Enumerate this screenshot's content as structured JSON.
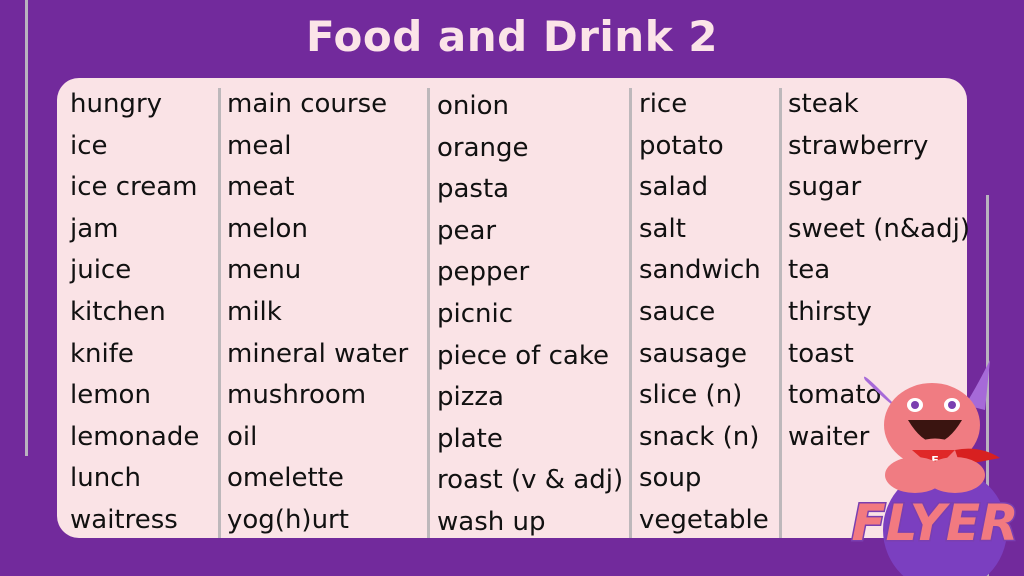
{
  "title": "Food and Drink 2",
  "columns": [
    [
      "hungry",
      "ice",
      "ice cream",
      "jam",
      "juice",
      "kitchen",
      "knife",
      "lemon",
      "lemonade",
      "lunch",
      "waitress"
    ],
    [
      "main course",
      "meal",
      "meat",
      "melon",
      "menu",
      "milk",
      "mineral water",
      "mushroom",
      "oil",
      "omelette",
      "yog(h)urt"
    ],
    [
      "onion",
      "orange",
      "pasta",
      "pear",
      "pepper",
      "picnic",
      "piece of cake",
      "pizza",
      "plate",
      "roast (v & adj)",
      "wash up"
    ],
    [
      "rice",
      "potato",
      "salad",
      "salt",
      "sandwich",
      "sauce",
      "sausage",
      "slice (n)",
      "snack (n)",
      "soup",
      "vegetable"
    ],
    [
      "steak",
      "strawberry",
      "sugar",
      "sweet (n&adj)",
      "tea",
      "thirsty",
      "toast",
      "tomato",
      "waiter"
    ]
  ],
  "logo": {
    "text": "FLYER",
    "badge_letter": "F"
  },
  "colors": {
    "background": "#722a9c",
    "card": "#fae3e6",
    "title": "#fbe4e8"
  }
}
